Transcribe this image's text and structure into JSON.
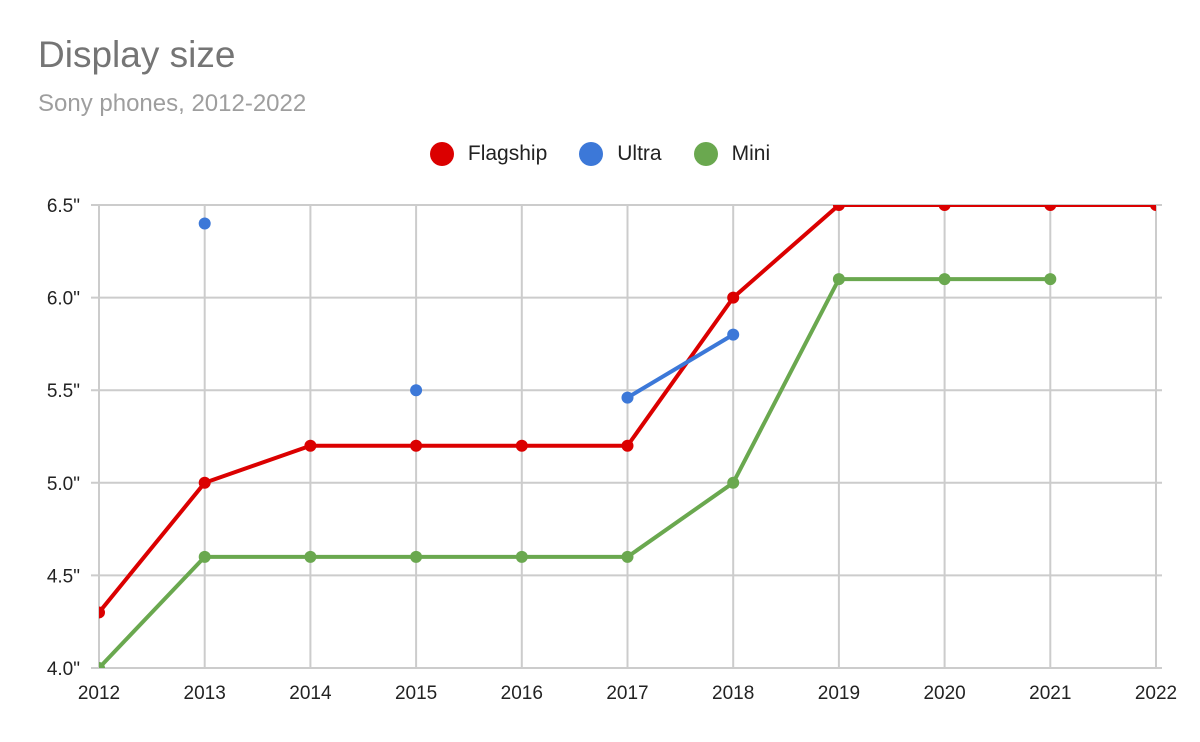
{
  "header": {
    "title": "Display size",
    "subtitle": "Sony phones, 2012-2022"
  },
  "legend": [
    {
      "label": "Flagship",
      "color": "#db0000"
    },
    {
      "label": "Ultra",
      "color": "#3c78d8"
    },
    {
      "label": "Mini",
      "color": "#6aa84f"
    }
  ],
  "chart_data": {
    "type": "line",
    "title": "Display size",
    "subtitle": "Sony phones, 2012-2022",
    "xlabel": "",
    "ylabel": "",
    "categories": [
      2012,
      2013,
      2014,
      2015,
      2016,
      2017,
      2018,
      2019,
      2020,
      2021,
      2022
    ],
    "x_tick_labels": [
      "2012",
      "2013",
      "2014",
      "2015",
      "2016",
      "2017",
      "2018",
      "2019",
      "2020",
      "2021",
      "2022"
    ],
    "y_tick_labels": [
      "4.0\"",
      "4.5\"",
      "5.0\"",
      "5.5\"",
      "6.0\"",
      "6.5\""
    ],
    "ylim": [
      4.0,
      6.5
    ],
    "grid": true,
    "legend_position": "top",
    "series": [
      {
        "name": "Flagship",
        "color": "#db0000",
        "values": [
          4.3,
          5.0,
          5.2,
          5.2,
          5.2,
          5.2,
          6.0,
          6.5,
          6.5,
          6.5,
          6.5
        ]
      },
      {
        "name": "Ultra",
        "color": "#3c78d8",
        "values": [
          null,
          6.4,
          null,
          5.5,
          null,
          5.46,
          5.8,
          null,
          null,
          null,
          null
        ]
      },
      {
        "name": "Mini",
        "color": "#6aa84f",
        "values": [
          4.0,
          4.6,
          4.6,
          4.6,
          4.6,
          4.6,
          5.0,
          6.1,
          6.1,
          6.1,
          null
        ]
      }
    ]
  }
}
